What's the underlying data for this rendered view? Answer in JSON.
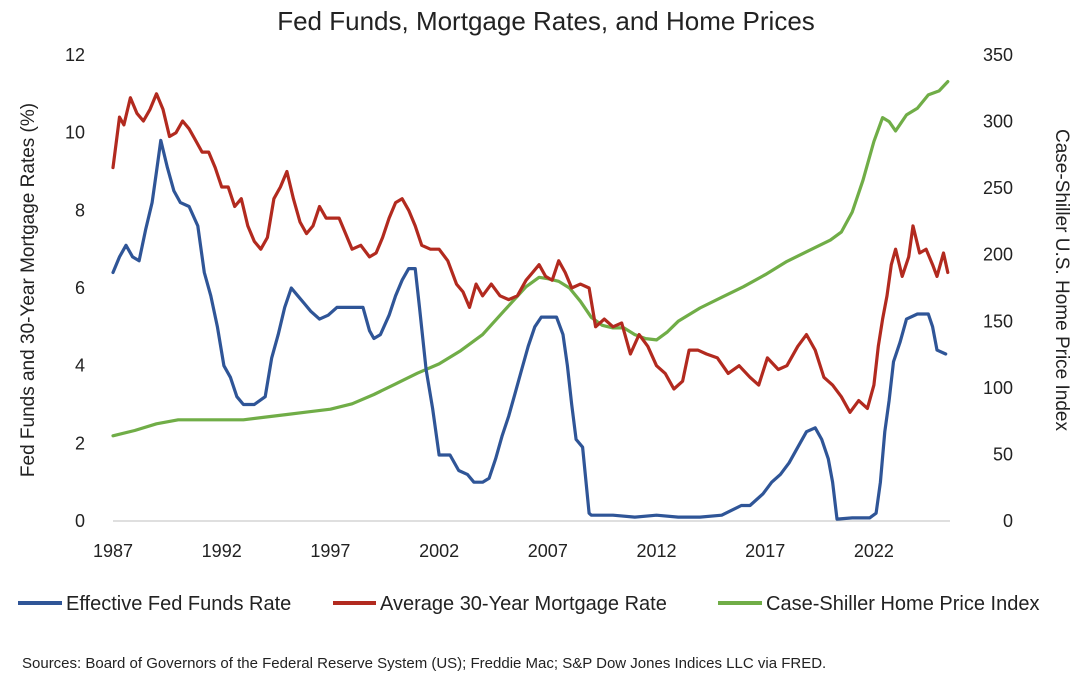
{
  "chart_data": {
    "type": "line",
    "title": "Fed Funds, Mortgage Rates, and Home Prices",
    "xlabel": "",
    "ylabel": "Fed Funds and 30-Year Mortgage Rates (%)",
    "y2label": "Case-Shiller U.S. Home Price Index",
    "xlim": [
      1987,
      2025.5
    ],
    "ylim": [
      0,
      12
    ],
    "y2lim": [
      0,
      350
    ],
    "x_ticks": [
      "1987",
      "1992",
      "1997",
      "2002",
      "2007",
      "2012",
      "2017",
      "2022"
    ],
    "y_ticks": [
      "0",
      "2",
      "4",
      "6",
      "8",
      "10",
      "12"
    ],
    "y2_ticks": [
      "0",
      "50",
      "100",
      "150",
      "200",
      "250",
      "300",
      "350"
    ],
    "grid": false,
    "legend_position": "bottom",
    "series": [
      {
        "name": "Effective Fed Funds Rate",
        "axis": "left",
        "color": "#2f5597",
        "x": [
          1987.0,
          1987.3,
          1987.6,
          1987.9,
          1988.2,
          1988.5,
          1988.8,
          1989.0,
          1989.2,
          1989.5,
          1989.8,
          1990.1,
          1990.5,
          1990.9,
          1991.2,
          1991.5,
          1991.8,
          1992.1,
          1992.4,
          1992.7,
          1993.0,
          1993.5,
          1994.0,
          1994.3,
          1994.6,
          1994.9,
          1995.2,
          1995.5,
          1995.8,
          1996.1,
          1996.5,
          1996.9,
          1997.3,
          1997.7,
          1998.1,
          1998.5,
          1998.8,
          1999.0,
          1999.3,
          1999.7,
          2000.0,
          2000.3,
          2000.6,
          2000.9,
          2001.1,
          2001.4,
          2001.7,
          2002.0,
          2002.5,
          2002.9,
          2003.3,
          2003.6,
          2004.0,
          2004.3,
          2004.6,
          2004.9,
          2005.2,
          2005.5,
          2005.8,
          2006.1,
          2006.4,
          2006.7,
          2007.0,
          2007.4,
          2007.7,
          2007.9,
          2008.1,
          2008.3,
          2008.6,
          2008.9,
          2009.0,
          2010.0,
          2011.0,
          2012.0,
          2013.0,
          2014.0,
          2015.0,
          2015.9,
          2016.3,
          2016.9,
          2017.3,
          2017.7,
          2018.1,
          2018.5,
          2018.9,
          2019.3,
          2019.6,
          2019.9,
          2020.1,
          2020.3,
          2021.0,
          2021.8,
          2022.1,
          2022.3,
          2022.5,
          2022.7,
          2022.9,
          2023.2,
          2023.5,
          2024.0,
          2024.5,
          2024.7,
          2024.9,
          2025.3
        ],
        "values": [
          6.4,
          6.8,
          7.1,
          6.8,
          6.7,
          7.5,
          8.2,
          9.0,
          9.8,
          9.1,
          8.5,
          8.2,
          8.1,
          7.6,
          6.4,
          5.8,
          5.0,
          4.0,
          3.7,
          3.2,
          3.0,
          3.0,
          3.2,
          4.2,
          4.8,
          5.5,
          6.0,
          5.8,
          5.6,
          5.4,
          5.2,
          5.3,
          5.5,
          5.5,
          5.5,
          5.5,
          4.9,
          4.7,
          4.8,
          5.3,
          5.8,
          6.2,
          6.5,
          6.5,
          5.5,
          3.9,
          2.9,
          1.7,
          1.7,
          1.3,
          1.2,
          1.0,
          1.0,
          1.1,
          1.6,
          2.2,
          2.7,
          3.3,
          3.9,
          4.5,
          5.0,
          5.25,
          5.25,
          5.25,
          4.8,
          4.0,
          3.0,
          2.1,
          1.9,
          0.2,
          0.15,
          0.15,
          0.1,
          0.15,
          0.1,
          0.1,
          0.15,
          0.4,
          0.4,
          0.7,
          1.0,
          1.2,
          1.5,
          1.9,
          2.3,
          2.4,
          2.1,
          1.6,
          1.0,
          0.05,
          0.08,
          0.08,
          0.2,
          1.0,
          2.3,
          3.1,
          4.1,
          4.6,
          5.2,
          5.33,
          5.33,
          5.0,
          4.4,
          4.3
        ]
      },
      {
        "name": "Average 30-Year Mortgage Rate",
        "axis": "left",
        "color": "#b22a1f",
        "x": [
          1987.0,
          1987.3,
          1987.5,
          1987.8,
          1988.1,
          1988.4,
          1988.7,
          1989.0,
          1989.3,
          1989.6,
          1989.9,
          1990.2,
          1990.5,
          1990.8,
          1991.1,
          1991.4,
          1991.7,
          1992.0,
          1992.3,
          1992.6,
          1992.9,
          1993.2,
          1993.5,
          1993.8,
          1994.1,
          1994.4,
          1994.7,
          1995.0,
          1995.3,
          1995.6,
          1995.9,
          1996.2,
          1996.5,
          1996.8,
          1997.1,
          1997.4,
          1997.7,
          1998.0,
          1998.4,
          1998.8,
          1999.1,
          1999.4,
          1999.7,
          2000.0,
          2000.3,
          2000.6,
          2000.9,
          2001.2,
          2001.6,
          2002.0,
          2002.4,
          2002.8,
          2003.1,
          2003.4,
          2003.7,
          2004.0,
          2004.4,
          2004.8,
          2005.2,
          2005.6,
          2006.0,
          2006.3,
          2006.6,
          2006.9,
          2007.2,
          2007.5,
          2007.8,
          2008.1,
          2008.5,
          2008.9,
          2009.2,
          2009.6,
          2010.0,
          2010.4,
          2010.8,
          2011.2,
          2011.6,
          2012.0,
          2012.4,
          2012.8,
          2013.2,
          2013.5,
          2013.9,
          2014.3,
          2014.8,
          2015.3,
          2015.8,
          2016.3,
          2016.7,
          2017.1,
          2017.6,
          2018.0,
          2018.5,
          2018.9,
          2019.3,
          2019.7,
          2020.1,
          2020.5,
          2020.9,
          2021.3,
          2021.7,
          2022.0,
          2022.2,
          2022.4,
          2022.6,
          2022.8,
          2023.0,
          2023.3,
          2023.6,
          2023.8,
          2024.1,
          2024.4,
          2024.7,
          2024.9,
          2025.2,
          2025.4
        ],
        "values": [
          9.1,
          10.4,
          10.2,
          10.9,
          10.5,
          10.3,
          10.6,
          11.0,
          10.6,
          9.9,
          10.0,
          10.3,
          10.1,
          9.8,
          9.5,
          9.5,
          9.1,
          8.6,
          8.6,
          8.1,
          8.3,
          7.6,
          7.2,
          7.0,
          7.3,
          8.3,
          8.6,
          9.0,
          8.3,
          7.7,
          7.4,
          7.6,
          8.1,
          7.8,
          7.8,
          7.8,
          7.4,
          7.0,
          7.1,
          6.8,
          6.9,
          7.3,
          7.8,
          8.2,
          8.3,
          8.0,
          7.6,
          7.1,
          7.0,
          7.0,
          6.7,
          6.1,
          5.9,
          5.5,
          6.1,
          5.8,
          6.1,
          5.8,
          5.7,
          5.8,
          6.2,
          6.4,
          6.6,
          6.3,
          6.2,
          6.7,
          6.4,
          6.0,
          6.1,
          6.0,
          5.0,
          5.2,
          5.0,
          5.1,
          4.3,
          4.8,
          4.5,
          4.0,
          3.8,
          3.4,
          3.6,
          4.4,
          4.4,
          4.3,
          4.2,
          3.8,
          4.0,
          3.7,
          3.5,
          4.2,
          3.9,
          4.0,
          4.5,
          4.8,
          4.4,
          3.7,
          3.5,
          3.2,
          2.8,
          3.1,
          2.9,
          3.5,
          4.5,
          5.2,
          5.8,
          6.6,
          7.0,
          6.3,
          6.8,
          7.6,
          6.9,
          7.0,
          6.6,
          6.3,
          6.9,
          6.4
        ]
      },
      {
        "name": "Case-Shiller Home Price Index",
        "axis": "right",
        "color": "#70ad47",
        "x": [
          1987.0,
          1988.0,
          1989.0,
          1990.0,
          1991.0,
          1992.0,
          1993.0,
          1994.0,
          1995.0,
          1996.0,
          1997.0,
          1998.0,
          1999.0,
          2000.0,
          2001.0,
          2002.0,
          2003.0,
          2004.0,
          2005.0,
          2006.0,
          2006.6,
          2007.0,
          2007.5,
          2008.0,
          2008.5,
          2009.0,
          2009.5,
          2010.0,
          2010.5,
          2011.0,
          2011.5,
          2012.0,
          2012.5,
          2013.0,
          2014.0,
          2015.0,
          2016.0,
          2017.0,
          2018.0,
          2019.0,
          2020.0,
          2020.5,
          2021.0,
          2021.5,
          2022.0,
          2022.4,
          2022.7,
          2023.0,
          2023.5,
          2024.0,
          2024.5,
          2025.0,
          2025.4
        ],
        "values": [
          64,
          68,
          73,
          76,
          76,
          76,
          76,
          78,
          80,
          82,
          84,
          88,
          95,
          103,
          111,
          118,
          128,
          140,
          158,
          176,
          183,
          182,
          180,
          175,
          165,
          153,
          147,
          145,
          145,
          140,
          137,
          136,
          142,
          150,
          160,
          168,
          176,
          185,
          195,
          203,
          211,
          217,
          232,
          256,
          285,
          303,
          300,
          293,
          305,
          310,
          320,
          323,
          330
        ]
      }
    ],
    "sources": "Sources: Board of Governors of the Federal Reserve System (US); Freddie Mac; S&P Dow Jones Indices LLC via FRED."
  }
}
